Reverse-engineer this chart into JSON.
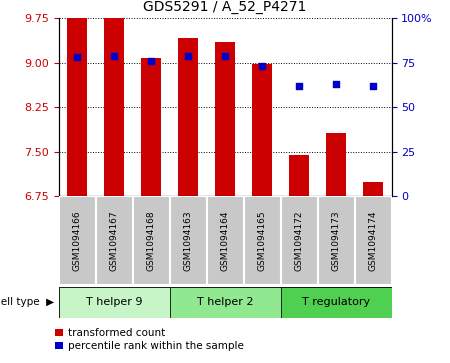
{
  "title": "GDS5291 / A_52_P4271",
  "samples": [
    "GSM1094166",
    "GSM1094167",
    "GSM1094168",
    "GSM1094163",
    "GSM1094164",
    "GSM1094165",
    "GSM1094172",
    "GSM1094173",
    "GSM1094174"
  ],
  "transformed_counts": [
    9.75,
    9.75,
    9.08,
    9.42,
    9.35,
    8.98,
    7.45,
    7.82,
    6.98
  ],
  "percentile_ranks": [
    78,
    79,
    76,
    79,
    79,
    73,
    62,
    63,
    62
  ],
  "cell_types": [
    {
      "label": "T helper 9",
      "start": 0,
      "end": 3,
      "color": "#c8f5c8"
    },
    {
      "label": "T helper 2",
      "start": 3,
      "end": 6,
      "color": "#90e890"
    },
    {
      "label": "T regulatory",
      "start": 6,
      "end": 9,
      "color": "#50d050"
    }
  ],
  "ylim_left": [
    6.75,
    9.75
  ],
  "yticks_left": [
    6.75,
    7.5,
    8.25,
    9.0,
    9.75
  ],
  "ylim_right": [
    0,
    100
  ],
  "yticks_right": [
    0,
    25,
    50,
    75,
    100
  ],
  "bar_color": "#cc0000",
  "dot_color": "#0000cc",
  "bar_width": 0.55,
  "bar_bottom": 6.75,
  "legend_items": [
    "transformed count",
    "percentile rank within the sample"
  ],
  "cell_type_label": "cell type",
  "background_color": "#ffffff",
  "plot_bg_color": "#ffffff",
  "tick_label_color_left": "#cc0000",
  "tick_label_color_right": "#0000cc",
  "sample_box_color": "#c8c8c8",
  "grid_color": "#000000"
}
